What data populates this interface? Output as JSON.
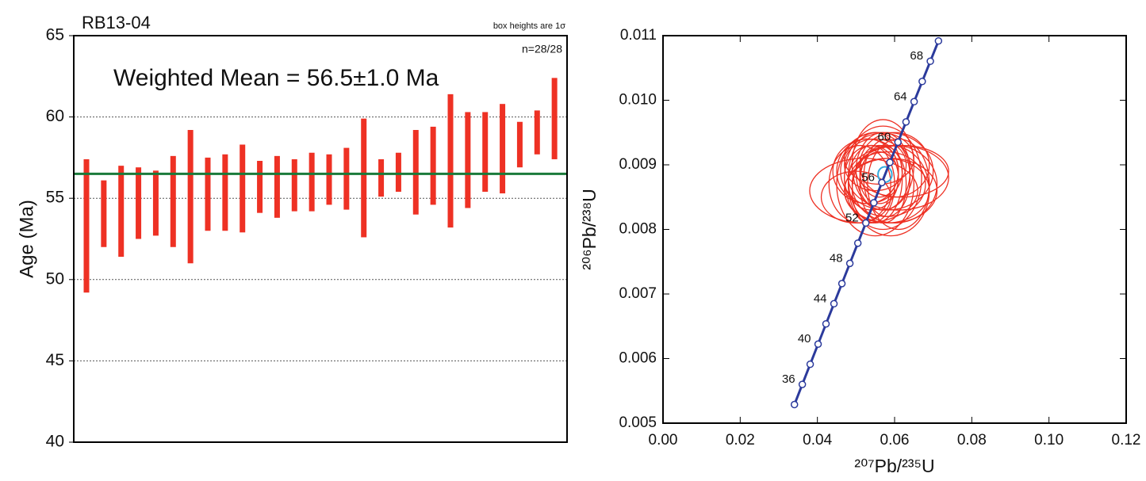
{
  "chart_data": [
    {
      "type": "weighted_mean",
      "title": "RB13-04",
      "note": "box heights are 1σ",
      "count_label": "n=28/28",
      "annotation": "Weighted Mean = 56.5±1.0 Ma",
      "y_label": "Age (Ma)",
      "ylim": [
        40,
        65
      ],
      "yticks": [
        40,
        45,
        50,
        55,
        60,
        65
      ],
      "grid": true,
      "color": "#ee3124",
      "mean": 56.5,
      "mean_color": "#1a7a3a",
      "low": [
        49.2,
        52.0,
        51.4,
        52.5,
        52.7,
        52.0,
        51.0,
        53.0,
        53.0,
        52.9,
        54.1,
        53.8,
        54.2,
        54.2,
        54.6,
        54.3,
        52.6,
        55.1,
        55.4,
        54.0,
        54.6,
        53.2,
        54.4,
        55.4,
        55.3,
        56.9,
        57.7,
        57.4
      ],
      "high": [
        57.4,
        56.1,
        57.0,
        56.9,
        56.7,
        57.6,
        59.2,
        57.5,
        57.7,
        58.3,
        57.3,
        57.6,
        57.4,
        57.8,
        57.7,
        58.1,
        59.9,
        57.4,
        57.8,
        59.2,
        59.4,
        61.4,
        60.3,
        60.3,
        60.8,
        59.7,
        60.4,
        62.4
      ]
    },
    {
      "type": "concordia",
      "x_label": "²⁰⁷Pb/²³⁵U",
      "y_label": "²⁰⁶Pb/²³⁸U",
      "xlim": [
        0,
        0.12
      ],
      "xticks": [
        {
          "value": 0,
          "label": "0.00"
        },
        0.02,
        0.04,
        0.06,
        0.08,
        {
          "value": 0.1,
          "label": "0.10"
        },
        0.12
      ],
      "ylim": [
        0.005,
        0.011
      ],
      "yticks": [
        0.005,
        0.006,
        0.007,
        0.008,
        0.009,
        {
          "value": 0.01,
          "label": "0.010"
        },
        0.011
      ],
      "curve_color": "#2b3a9c",
      "curve": {
        "x": [
          0.03405,
          0.03609,
          0.03813,
          0.04018,
          0.04223,
          0.04429,
          0.04635,
          0.04841,
          0.05048,
          0.05255,
          0.05462,
          0.0567,
          0.05878,
          0.06087,
          0.06296,
          0.06506,
          0.06716,
          0.06926,
          0.07137
        ],
        "y": [
          0.005288,
          0.0056,
          0.005912,
          0.006224,
          0.006537,
          0.006849,
          0.007161,
          0.007474,
          0.007787,
          0.008099,
          0.008412,
          0.008725,
          0.009038,
          0.009351,
          0.009664,
          0.009978,
          0.010291,
          0.010604,
          0.010918
        ],
        "labels": [
          null,
          "36",
          null,
          "40",
          null,
          "44",
          null,
          "48",
          null,
          "52",
          null,
          "56",
          null,
          "60",
          null,
          "64",
          null,
          "68",
          null
        ]
      },
      "ellipse_color": "#ee3124",
      "ellipses": {
        "x": [
          0.052,
          0.058,
          0.055,
          0.061,
          0.05,
          0.057,
          0.06,
          0.054,
          0.056,
          0.059,
          0.053,
          0.057,
          0.062,
          0.055,
          0.058,
          0.051,
          0.056,
          0.06,
          0.054,
          0.057,
          0.059,
          0.055,
          0.058,
          0.053,
          0.061,
          0.056,
          0.057,
          0.058
        ],
        "y": [
          0.0086,
          0.0089,
          0.0087,
          0.0088,
          0.0085,
          0.009,
          0.0087,
          0.0088,
          0.0091,
          0.0086,
          0.0089,
          0.0087,
          0.0089,
          0.0088,
          0.0086,
          0.0087,
          0.0089,
          0.009,
          0.0087,
          0.0088,
          0.0086,
          0.009,
          0.0088,
          0.0089,
          0.0087,
          0.0088,
          0.0089,
          0.0087
        ],
        "x_err": [
          0.014,
          0.012,
          0.01,
          0.013,
          0.009,
          0.008,
          0.011,
          0.007,
          0.009,
          0.01,
          0.008,
          0.006,
          0.012,
          0.007,
          0.011,
          0.008,
          0.005,
          0.009,
          0.006,
          0.01,
          0.012,
          0.008,
          0.006,
          0.009,
          0.008,
          0.005,
          0.007,
          0.01
        ],
        "y_err": [
          0.0005,
          0.0006,
          0.0008,
          0.0005,
          0.0004,
          0.0007,
          0.0006,
          0.0005,
          0.0004,
          0.0007,
          0.0005,
          0.0006,
          0.0004,
          0.0007,
          0.0005,
          0.0006,
          0.0004,
          0.0005,
          0.0006,
          0.0008,
          0.0005,
          0.0004,
          0.0006,
          0.0005,
          0.0007,
          0.0004,
          0.0006,
          0.0005
        ]
      },
      "mean_ellipse": {
        "x": 0.0575,
        "y": 0.00885,
        "x_err": 0.0018,
        "y_err": 0.00012,
        "color": "#33aadd"
      }
    }
  ]
}
